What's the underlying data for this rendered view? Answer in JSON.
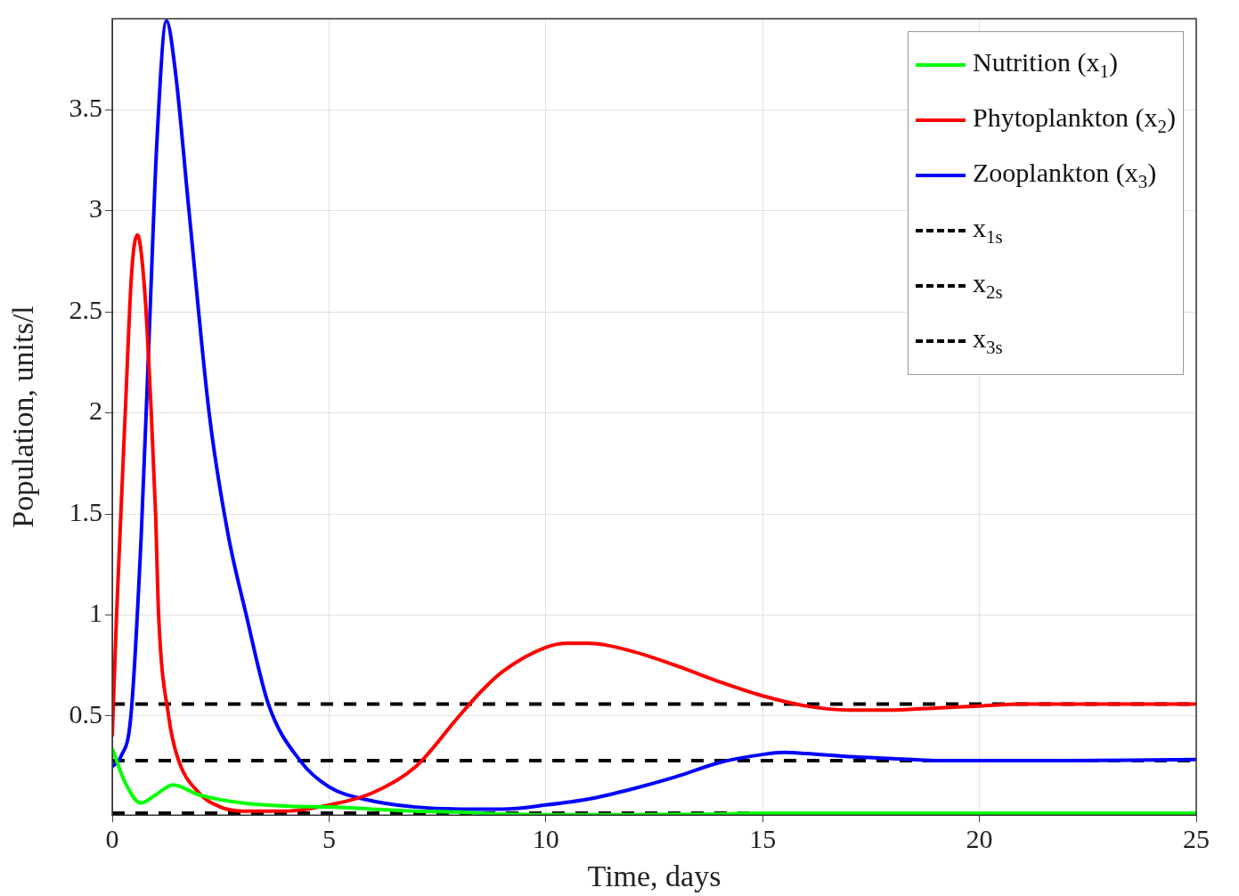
{
  "chart_data": {
    "type": "line",
    "xlabel": "Time, days",
    "ylabel": "Population, units/l",
    "xlim": [
      0,
      25
    ],
    "xticks": [
      0,
      5,
      10,
      15,
      20,
      25
    ],
    "ylim": [
      0.01,
      3.95
    ],
    "yticks": [
      0.5,
      1,
      1.5,
      2,
      2.5,
      3,
      3.5
    ],
    "grid": true,
    "legend": "top right",
    "marker": "none",
    "series": [
      {
        "name": "Nutrition (x$_{1}$)",
        "color": "#00ff00",
        "line_style": "solid",
        "x": [
          0,
          0.3,
          0.66,
          1,
          1.4,
          2,
          3,
          4,
          5,
          6,
          7,
          8,
          9,
          10,
          12,
          14,
          15,
          20,
          25
        ],
        "values": [
          0.34,
          0.17,
          0.07,
          0.11,
          0.16,
          0.11,
          0.07,
          0.055,
          0.05,
          0.04,
          0.03,
          0.025,
          0.015,
          0.012,
          0.012,
          0.015,
          0.02,
          0.02,
          0.02
        ]
      },
      {
        "name": "Phytoplankton (x$_{2}$)",
        "color": "#ff0000",
        "line_style": "solid",
        "x": [
          0,
          0.1,
          0.3,
          0.45,
          0.58,
          0.75,
          0.9,
          1,
          1.07,
          1.3,
          1.5,
          2,
          2.5,
          3,
          4,
          5,
          6,
          7,
          8,
          8.5,
          9,
          10,
          10.5,
          11,
          12,
          13,
          14,
          15,
          16,
          17,
          18,
          19,
          20,
          21,
          25
        ],
        "values": [
          0.4,
          1.0,
          2.0,
          2.7,
          2.88,
          2.6,
          2.0,
          1.5,
          1.0,
          0.5,
          0.3,
          0.12,
          0.05,
          0.03,
          0.03,
          0.06,
          0.12,
          0.25,
          0.5,
          0.62,
          0.72,
          0.84,
          0.86,
          0.86,
          0.82,
          0.75,
          0.67,
          0.6,
          0.55,
          0.53,
          0.53,
          0.54,
          0.55,
          0.56,
          0.56
        ]
      },
      {
        "name": "Zooplankton (x$_{3}$)",
        "color": "#0000ff",
        "line_style": "solid",
        "x": [
          0,
          0.2,
          0.43,
          0.67,
          0.86,
          1.03,
          1.25,
          1.45,
          1.77,
          2.24,
          2.67,
          3.08,
          3.6,
          4.33,
          5,
          6,
          7,
          8,
          9,
          10,
          11,
          12,
          13,
          14,
          15,
          15.5,
          16,
          17,
          18,
          19,
          22,
          25
        ],
        "values": [
          0.25,
          0.3,
          0.5,
          1.4,
          2.43,
          3.34,
          3.94,
          3.7,
          3.0,
          1.99,
          1.4,
          1.01,
          0.56,
          0.28,
          0.15,
          0.08,
          0.05,
          0.04,
          0.04,
          0.06,
          0.09,
          0.14,
          0.2,
          0.27,
          0.31,
          0.32,
          0.315,
          0.3,
          0.29,
          0.28,
          0.28,
          0.285
        ]
      },
      {
        "name": "x$_{1s}$",
        "color": "#000000",
        "line_style": "dashed",
        "x": [
          0,
          25
        ],
        "values": [
          0.02,
          0.02
        ]
      },
      {
        "name": "x$_{2s}$",
        "color": "#000000",
        "line_style": "dashed",
        "x": [
          0,
          25
        ],
        "values": [
          0.56,
          0.56
        ]
      },
      {
        "name": "x$_{3s}$",
        "color": "#000000",
        "line_style": "dashed",
        "x": [
          0,
          25
        ],
        "values": [
          0.28,
          0.28
        ]
      }
    ]
  }
}
